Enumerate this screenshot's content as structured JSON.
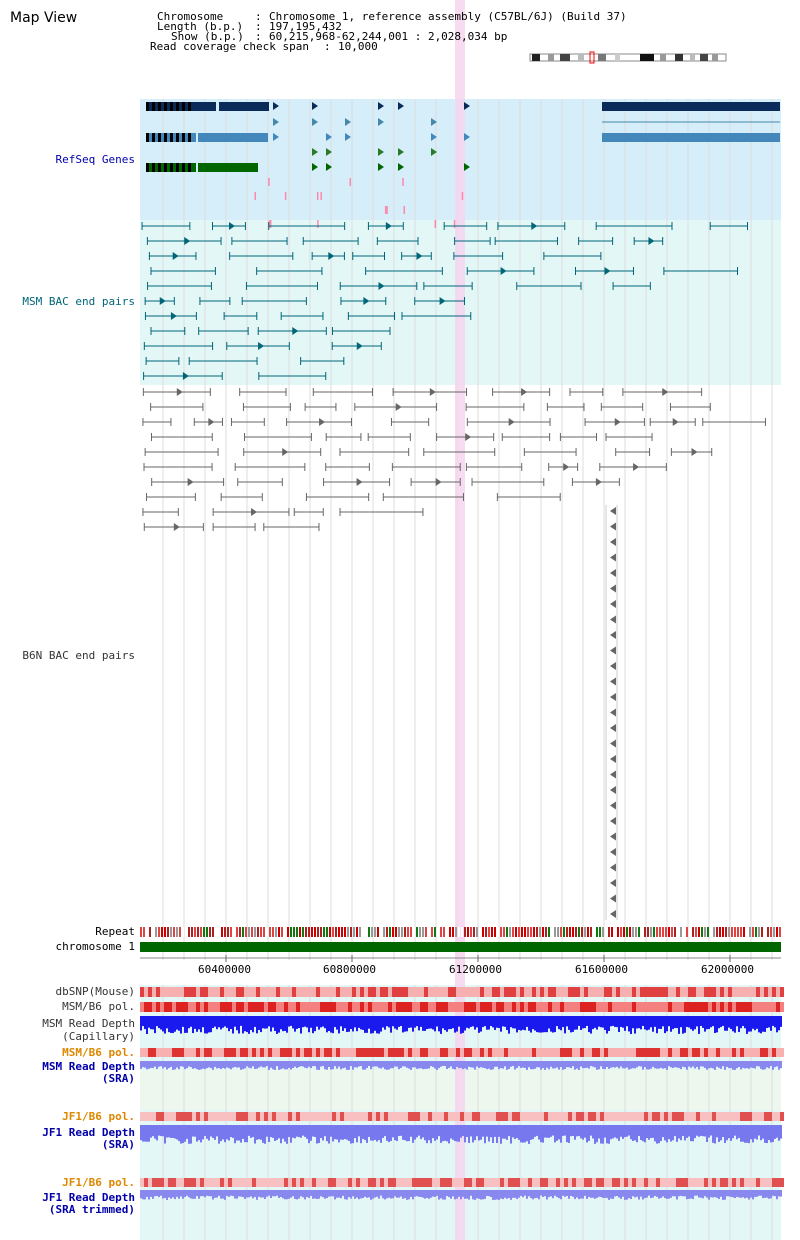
{
  "panel_title": "Map View",
  "info": {
    "chromosome_label": "Chromosome",
    "chromosome_value": "Chromosome 1, reference assembly (C57BL/6J) (Build 37)",
    "length_label": "Length (b.p.)",
    "length_value": "197,195,432",
    "show_label": "Show (b.p.)",
    "show_value": "60,215,968-62,244,001 : 2,028,034 bp",
    "coverage_label": "Read coverage check span",
    "coverage_value": "10,000"
  },
  "tracks": {
    "refseq": "RefSeq Genes",
    "msm_bac": "MSM BAC end pairs",
    "b6n_bac": "B6N BAC end pairs",
    "repeat": "Repeat",
    "chromosome": "chromosome 1",
    "dbsnp": "dbSNP(Mouse)",
    "msm_b6_pol_1": "MSM/B6 pol.",
    "msm_depth_cap_1": "MSM Read Depth",
    "msm_depth_cap_2": "(Capillary)",
    "msm_b6_pol_2": "MSM/B6 pol.",
    "msm_depth_sra_1": "MSM Read Depth",
    "msm_depth_sra_2": "(SRA)",
    "jf1_b6_pol_1": "JF1/B6 pol.",
    "jf1_depth_sra_1": "JF1 Read Depth",
    "jf1_depth_sra_2": "(SRA)",
    "jf1_b6_pol_2": "JF1/B6 pol.",
    "jf1_depth_trim_1": "JF1 Read Depth",
    "jf1_depth_trim_2": "(SRA trimmed)"
  },
  "axis": {
    "ticks": [
      "60400000",
      "60800000",
      "61200000",
      "61600000",
      "62000000"
    ]
  },
  "colors": {
    "refseq_band": "#d6eefa",
    "msm_band": "#e3f7f7",
    "highlight": "#f5d5ef",
    "refseq_label": "#0000aa",
    "msm_label": "#006677",
    "b6n_label": "#333333",
    "pol_label": "#dd8800",
    "depth_label": "#0000aa",
    "chromosome_bar": "#006600"
  }
}
